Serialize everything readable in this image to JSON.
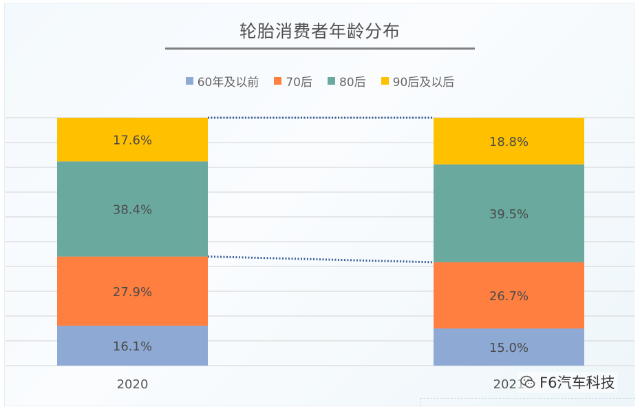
{
  "chart_data": {
    "type": "bar",
    "stacked": true,
    "title": "轮胎消费者年龄分布",
    "categories": [
      "2020",
      "2021"
    ],
    "ylim": [
      0,
      100
    ],
    "grid": true,
    "legend_position": "top-center",
    "series": [
      {
        "name": "60年及以前",
        "color": "#8eaad4",
        "values": [
          16.1,
          15.0
        ],
        "labels": [
          "16.1%",
          "15.0%"
        ]
      },
      {
        "name": "70后",
        "color": "#ff7f41",
        "values": [
          27.9,
          26.7
        ],
        "labels": [
          "27.9%",
          "26.7%"
        ]
      },
      {
        "name": "80后",
        "color": "#6aa99e",
        "values": [
          38.4,
          39.5
        ],
        "labels": [
          "38.4%",
          "39.5%"
        ]
      },
      {
        "name": "90后及以后",
        "color": "#ffc000",
        "values": [
          17.6,
          18.8
        ],
        "labels": [
          "17.6%",
          "18.8%"
        ]
      }
    ],
    "connector_color": "#3b5f9a"
  },
  "watermark": {
    "icon": "wechat-icon",
    "text": "F6汽车科技"
  }
}
